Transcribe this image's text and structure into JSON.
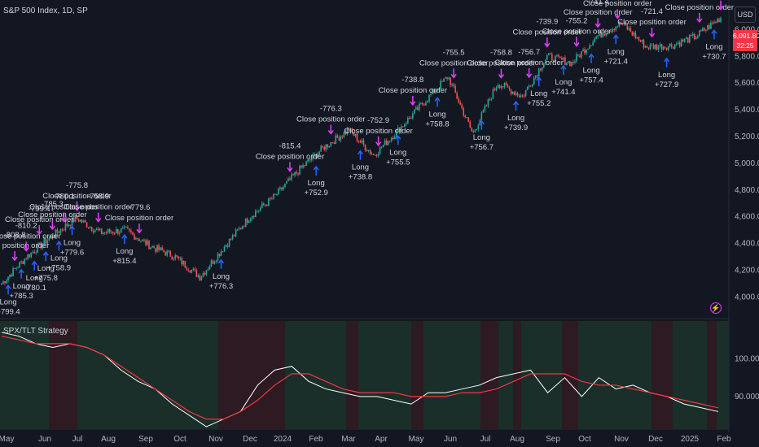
{
  "header": {
    "symbol": "S&P 500 Index, 1D, SP"
  },
  "indicator": {
    "title": "SPX/TLT Strategy"
  },
  "currency_button": "USD",
  "price_tag": {
    "price": "6,091.80",
    "countdown": "32:25"
  },
  "colors": {
    "background": "#131722",
    "up": "#26a69a",
    "down": "#ef5350",
    "entry": "#2962ff",
    "exit": "#e040fb",
    "ratio": "#ffffff",
    "ma": "#f23645",
    "green_bg": "#1a2e2a",
    "red_bg": "#2d1a22"
  },
  "chart_data": [
    {
      "type": "candlestick",
      "title": "S&P 500 Index, 1D, SP",
      "y_ticks": [
        "4,000.00",
        "4,200.00",
        "4,400.00",
        "4,600.00",
        "4,800.00",
        "5,000.00",
        "5,200.00",
        "5,400.00",
        "5,600.00",
        "5,800.00",
        "6,000.00"
      ],
      "x_ticks": [
        "May",
        "Jun",
        "Jul",
        "Aug",
        "Sep",
        "Oct",
        "Nov",
        "Dec",
        "2024",
        "Feb",
        "Mar",
        "Apr",
        "May",
        "Jun",
        "Jul",
        "Aug",
        "Sep",
        "Oct",
        "Nov",
        "Dec",
        "2025",
        "Feb"
      ],
      "ylim": [
        3850,
        6100
      ],
      "close_path": [
        [
          "May 2023",
          4100
        ],
        [
          "Jun 2023",
          4300
        ],
        [
          "Jul 2023",
          4450
        ],
        [
          "Aug 2023",
          4590
        ],
        [
          "Aug 2023",
          4480
        ],
        [
          "Sep 2023",
          4500
        ],
        [
          "Sep 2023",
          4380
        ],
        [
          "Oct 2023",
          4300
        ],
        [
          "Oct 2023",
          4150
        ],
        [
          "Nov 2023",
          4380
        ],
        [
          "Dec 2023",
          4600
        ],
        [
          "2024",
          4750
        ],
        [
          "Feb 2024",
          4950
        ],
        [
          "Mar 2024",
          5120
        ],
        [
          "Apr 2024",
          5250
        ],
        [
          "Apr 2024",
          5060
        ],
        [
          "May 2024",
          5250
        ],
        [
          "Jun 2024",
          5450
        ],
        [
          "Jul 2024",
          5650
        ],
        [
          "Aug 2024",
          5220
        ],
        [
          "Aug 2024",
          5600
        ],
        [
          "Sep 2024",
          5500
        ],
        [
          "Oct 2024",
          5800
        ],
        [
          "Nov 2024",
          5750
        ],
        [
          "Nov 2024",
          5950
        ],
        [
          "Dec 2024",
          6050
        ],
        [
          "Dec 2024",
          5870
        ],
        [
          "2025",
          5880
        ],
        [
          "2025",
          5950
        ],
        [
          "Feb 2025",
          6090
        ]
      ],
      "trades": [
        {
          "label": "Close position order",
          "pnl": "-808.8"
        },
        {
          "label": "Close position order",
          "pnl": "-810.2"
        },
        {
          "label": "Close position order",
          "pnl": "-799.4"
        },
        {
          "label": "Close position order",
          "pnl": "-785.3"
        },
        {
          "label": "Close position order",
          "pnl": "-780.1"
        },
        {
          "label": "Close position order",
          "pnl": "-775.8"
        },
        {
          "label": "Close position order",
          "pnl": "-758.9"
        },
        {
          "label": "Close position order",
          "pnl": "-779.6"
        },
        {
          "label": "Close position order",
          "pnl": "-815.4"
        },
        {
          "label": "Close position order",
          "pnl": "-776.3"
        },
        {
          "label": "Close position order",
          "pnl": "-752.9"
        },
        {
          "label": "Close position order",
          "pnl": "-738.8"
        },
        {
          "label": "Close position order",
          "pnl": "-755.5"
        },
        {
          "label": "Close position order",
          "pnl": "-758.8"
        },
        {
          "label": "Close position order",
          "pnl": "-756.7"
        },
        {
          "label": "Close position order",
          "pnl": "-739.9"
        },
        {
          "label": "Close position order",
          "pnl": "-755.2"
        },
        {
          "label": "Close position order",
          "pnl": "-741.4"
        },
        {
          "label": "Close position order",
          "pnl": "-757.4"
        },
        {
          "label": "Close position order",
          "pnl": "-721.4"
        },
        {
          "label": "Close position order",
          "pnl": "-727.9"
        },
        {
          "label": "Close position order",
          "pnl": "-730.7"
        }
      ],
      "longs": [
        "+799.4",
        "+785.3",
        "+780.1",
        "+775.8",
        "+758.9",
        "+779.6",
        "+815.4",
        "+776.3",
        "+752.9",
        "+738.8",
        "+755.5",
        "+758.8",
        "+756.7",
        "+739.9",
        "+755.2",
        "+741.4",
        "+757.4",
        "+721.4",
        "+727.9",
        "+730.7"
      ],
      "entry_label": "Long"
    },
    {
      "type": "line",
      "title": "SPX/TLT Strategy",
      "y_ticks": [
        "90.0000",
        "100.0000"
      ],
      "series": [
        {
          "values": [
            107,
            106,
            104,
            103,
            104,
            103,
            101,
            97,
            94,
            92,
            88,
            85,
            82,
            84,
            86,
            93,
            97,
            98,
            94,
            92,
            91,
            90,
            90,
            89,
            88,
            91,
            91,
            92,
            93,
            95,
            96,
            97,
            91,
            95,
            90,
            95,
            92,
            93,
            91,
            90,
            88,
            87,
            86
          ]
        },
        {
          "values": [
            106,
            105,
            104,
            104,
            104,
            103,
            101,
            98,
            95,
            92,
            89,
            86,
            84,
            84,
            86,
            89,
            93,
            96,
            96,
            94,
            92,
            91,
            91,
            91,
            90,
            90,
            90,
            91,
            91,
            92,
            94,
            96,
            96,
            96,
            94,
            93,
            93,
            92,
            91,
            90,
            89,
            88,
            87
          ]
        }
      ]
    }
  ]
}
